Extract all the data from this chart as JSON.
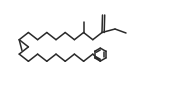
{
  "bg_color": "#ffffff",
  "line_color": "#2a2a2a",
  "line_width": 1.1,
  "figsize": [
    1.9,
    0.98
  ],
  "dpi": 100,
  "bx": 0.092,
  "by": 0.072
}
